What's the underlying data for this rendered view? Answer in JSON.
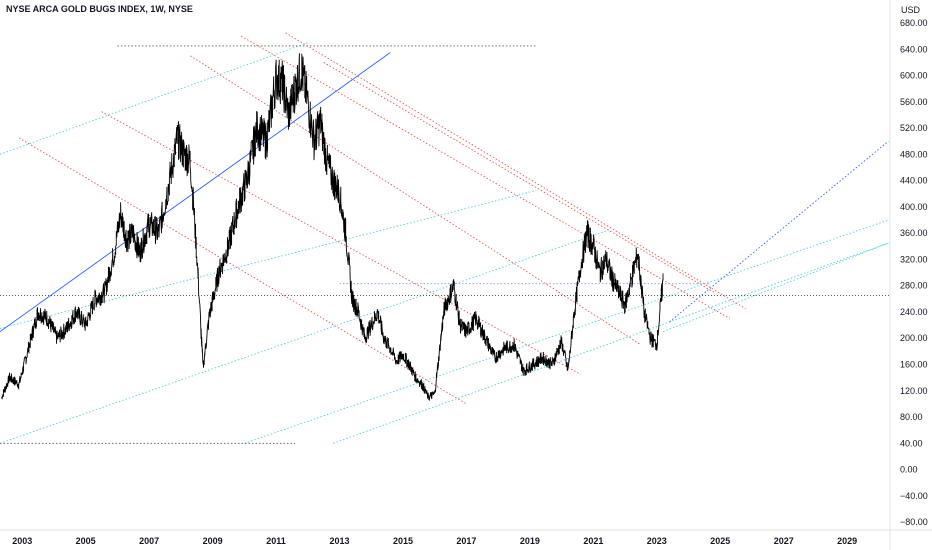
{
  "chart_data": {
    "type": "line",
    "title": "NYSE ARCA GOLD BUGS INDEX, 1W, NYSE",
    "currency_label": "USD",
    "x_unit": "year",
    "y_ticks": [
      680,
      640,
      600,
      560,
      520,
      480,
      440,
      400,
      360,
      320,
      280,
      240,
      200,
      160,
      120,
      80,
      40,
      0,
      -40,
      -80
    ],
    "y_tick_labels": [
      "680.00",
      "640.00",
      "600.00",
      "560.00",
      "520.00",
      "480.00",
      "440.00",
      "400.00",
      "360.00",
      "320.00",
      "280.00",
      "240.00",
      "200.00",
      "160.00",
      "120.00",
      "80.00",
      "40.00",
      "0.00",
      "−40.00",
      "−80.00"
    ],
    "ylim": [
      -92,
      715
    ],
    "x_ticks": [
      2003,
      2005,
      2007,
      2009,
      2011,
      2013,
      2015,
      2017,
      2019,
      2021,
      2023,
      2025,
      2027,
      2029
    ],
    "x_tick_labels": [
      "2003",
      "2005",
      "2007",
      "2009",
      "2011",
      "2013",
      "2015",
      "2017",
      "2019",
      "2021",
      "2023",
      "2025",
      "2027",
      "2029"
    ],
    "xlim": [
      2002.3,
      2030.35
    ],
    "current_level": 265,
    "colors": {
      "price": "#000000",
      "red_channel": "#ef5350",
      "cyan_channel": "#4dd0e1",
      "blue_trend": "#2962ff",
      "horizontal_dotted": "#555555",
      "horizontal_blue": "#7e97f0"
    },
    "series": [
      {
        "x": [
          2002.35,
          2002.6,
          2002.9,
          2003.2,
          2003.5,
          2003.8,
          2004.1,
          2004.4,
          2004.7,
          2005.0,
          2005.3,
          2005.6,
          2005.9,
          2006.1,
          2006.3,
          2006.5,
          2006.7,
          2007.0,
          2007.3,
          2007.6,
          2007.9,
          2008.1,
          2008.3,
          2008.5,
          2008.7,
          2008.9,
          2009.2,
          2009.5,
          2009.8,
          2010.1,
          2010.4,
          2010.7,
          2011.0,
          2011.2,
          2011.4,
          2011.6,
          2011.8,
          2012.0,
          2012.2,
          2012.4,
          2012.6,
          2012.8,
          2013.0,
          2013.2,
          2013.4,
          2013.6,
          2013.8,
          2014.0,
          2014.2,
          2014.4,
          2014.6,
          2014.8,
          2015.0,
          2015.2,
          2015.4,
          2015.6,
          2015.8,
          2016.0,
          2016.3,
          2016.6,
          2016.8,
          2017.0,
          2017.3,
          2017.6,
          2017.9,
          2018.2,
          2018.5,
          2018.8,
          2019.1,
          2019.4,
          2019.7,
          2020.0,
          2020.2,
          2020.4,
          2020.6,
          2020.8,
          2021.0,
          2021.2,
          2021.4,
          2021.6,
          2021.8,
          2022.0,
          2022.2,
          2022.4,
          2022.6,
          2022.8,
          2023.0,
          2023.2
        ],
        "values": [
          110,
          140,
          130,
          185,
          240,
          230,
          200,
          215,
          240,
          220,
          260,
          270,
          330,
          390,
          350,
          360,
          330,
          375,
          360,
          430,
          505,
          480,
          470,
          330,
          155,
          235,
          300,
          340,
          400,
          445,
          520,
          500,
          595,
          590,
          540,
          580,
          610,
          560,
          500,
          530,
          470,
          440,
          420,
          360,
          260,
          240,
          200,
          220,
          240,
          200,
          185,
          165,
          175,
          160,
          140,
          130,
          110,
          115,
          245,
          280,
          220,
          210,
          230,
          200,
          170,
          185,
          190,
          150,
          160,
          170,
          160,
          195,
          150,
          240,
          310,
          360,
          340,
          300,
          320,
          290,
          270,
          250,
          290,
          330,
          240,
          200,
          190,
          290
        ]
      }
    ]
  }
}
